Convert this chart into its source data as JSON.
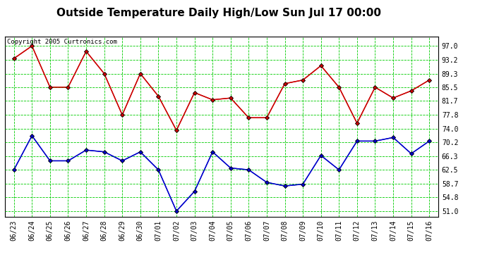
{
  "title": "Outside Temperature Daily High/Low Sun Jul 17 00:00",
  "copyright": "Copyright 2005 Curtronics.com",
  "labels": [
    "06/23",
    "06/24",
    "06/25",
    "06/26",
    "06/27",
    "06/28",
    "06/29",
    "06/30",
    "07/01",
    "07/02",
    "07/03",
    "07/04",
    "07/05",
    "07/06",
    "07/07",
    "07/08",
    "07/09",
    "07/10",
    "07/11",
    "07/12",
    "07/13",
    "07/14",
    "07/15",
    "07/16"
  ],
  "high": [
    93.5,
    97.0,
    85.5,
    85.5,
    95.5,
    89.3,
    77.8,
    89.3,
    83.0,
    73.5,
    84.0,
    82.0,
    82.5,
    77.0,
    77.0,
    86.5,
    87.5,
    91.5,
    85.5,
    75.5,
    85.5,
    82.5,
    84.5,
    87.5
  ],
  "low": [
    62.5,
    72.0,
    65.0,
    65.0,
    68.0,
    67.5,
    65.0,
    67.5,
    62.5,
    51.0,
    56.5,
    67.5,
    63.0,
    62.5,
    59.0,
    58.0,
    58.5,
    66.5,
    62.5,
    70.5,
    70.5,
    71.5,
    67.0,
    70.5
  ],
  "bg_color": "#ffffff",
  "grid_color": "#00cc00",
  "high_color": "#cc0000",
  "low_color": "#0000cc",
  "title_color": "#000000",
  "border_color": "#000000",
  "yticks": [
    51.0,
    54.8,
    58.7,
    62.5,
    66.3,
    70.2,
    74.0,
    77.8,
    81.7,
    85.5,
    89.3,
    93.2,
    97.0
  ],
  "ylim": [
    49.5,
    99.5
  ],
  "marker": "D",
  "markersize": 3,
  "title_fontsize": 11,
  "tick_fontsize": 7,
  "ytick_fontsize": 7
}
